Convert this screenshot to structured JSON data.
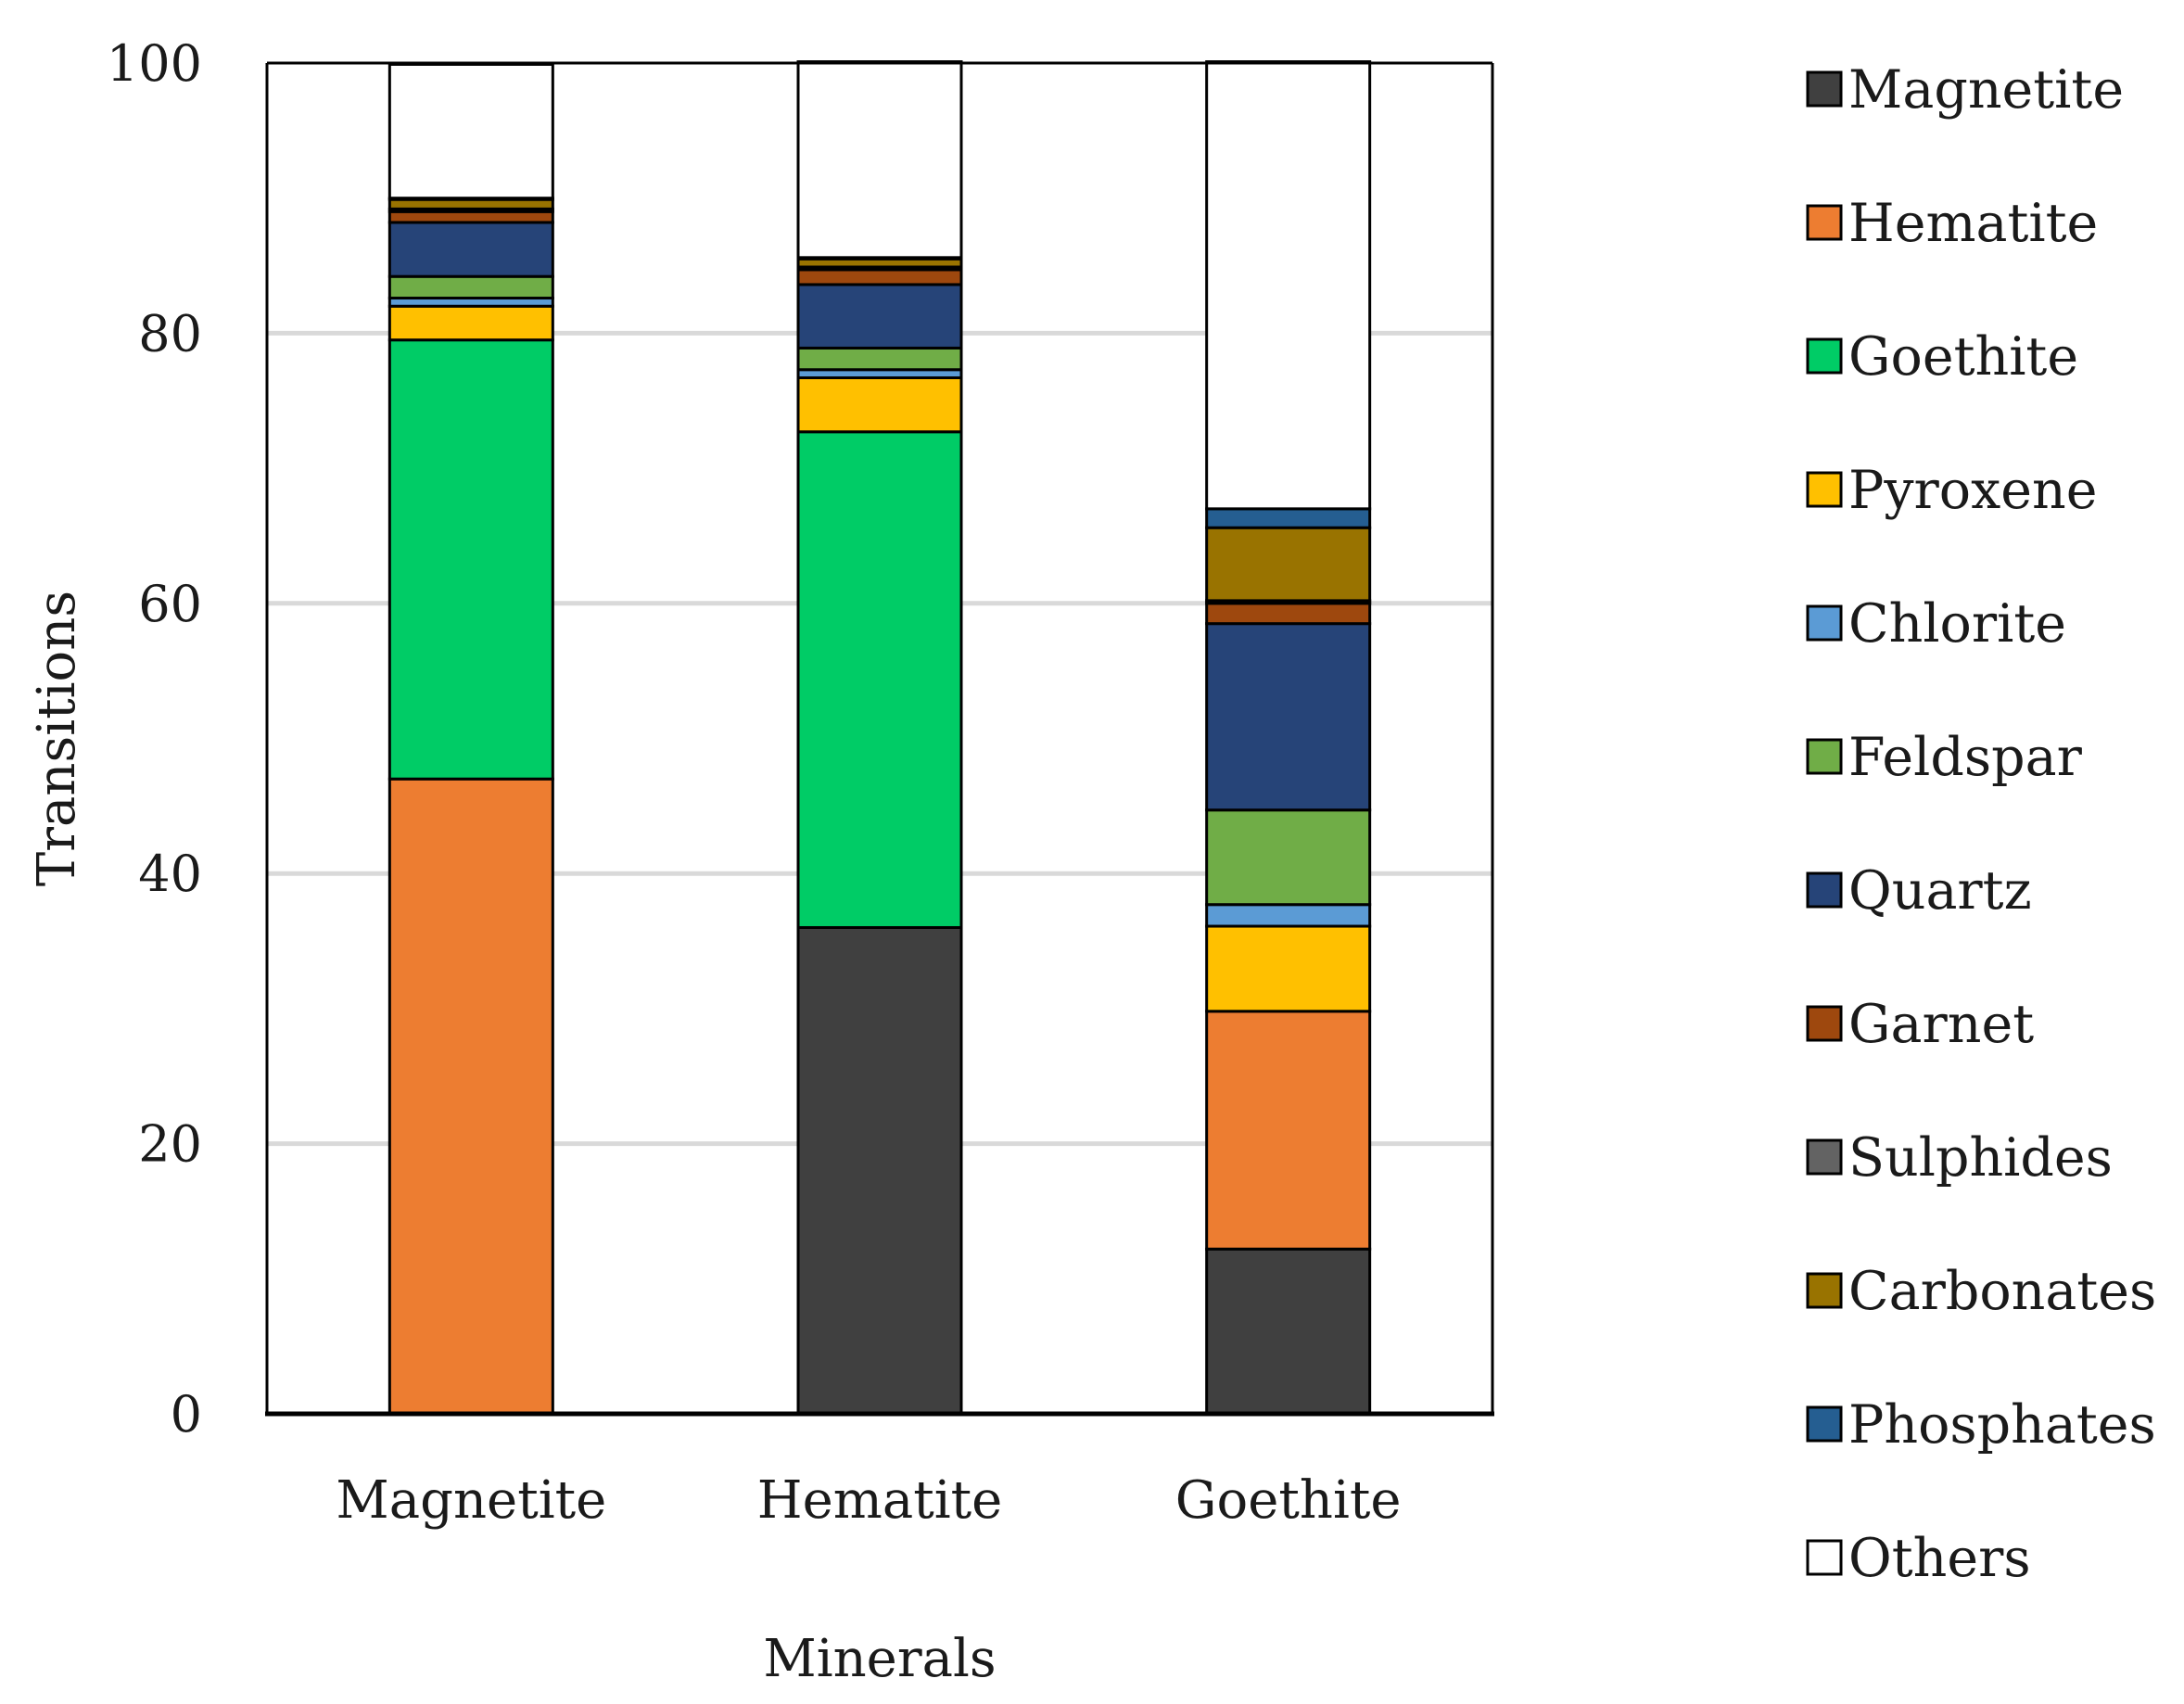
{
  "chart_data": {
    "type": "bar",
    "stacked": true,
    "title": "",
    "xlabel": "Minerals",
    "ylabel": "Transitions",
    "ylim": [
      0,
      100
    ],
    "yticks": [
      0,
      20,
      40,
      60,
      80,
      100
    ],
    "grid": true,
    "legend_position": "right",
    "categories": [
      "Magnetite",
      "Hematite",
      "Goethite"
    ],
    "series": [
      {
        "name": "Magnetite",
        "color": "#404040",
        "values": [
          0,
          36,
          12.2
        ]
      },
      {
        "name": "Hematite",
        "color": "#ED7D31",
        "values": [
          47,
          0,
          17.6
        ]
      },
      {
        "name": "Goethite",
        "color": "#00CC66",
        "values": [
          32.5,
          36.7,
          0
        ]
      },
      {
        "name": "Pyroxene",
        "color": "#FFC000",
        "values": [
          2.5,
          4,
          6.3
        ]
      },
      {
        "name": "Chlorite",
        "color": "#5B9BD5",
        "values": [
          0.6,
          0.6,
          1.6
        ]
      },
      {
        "name": "Feldspar",
        "color": "#70AD47",
        "values": [
          1.6,
          1.6,
          7
        ]
      },
      {
        "name": "Quartz",
        "color": "#264478",
        "values": [
          4,
          4.7,
          13.8
        ]
      },
      {
        "name": "Garnet",
        "color": "#9E480E",
        "values": [
          0.8,
          1.1,
          1.5
        ]
      },
      {
        "name": "Sulphides",
        "color": "#636363",
        "values": [
          0.2,
          0.2,
          0.2
        ]
      },
      {
        "name": "Carbonates",
        "color": "#997300",
        "values": [
          0.7,
          0.6,
          5.4
        ]
      },
      {
        "name": "Phosphates",
        "color": "#255E91",
        "values": [
          0.1,
          0.1,
          1.4
        ]
      },
      {
        "name": "Others",
        "color": "#FFFFFF",
        "values": [
          9.9,
          14.5,
          33.1
        ]
      }
    ]
  }
}
